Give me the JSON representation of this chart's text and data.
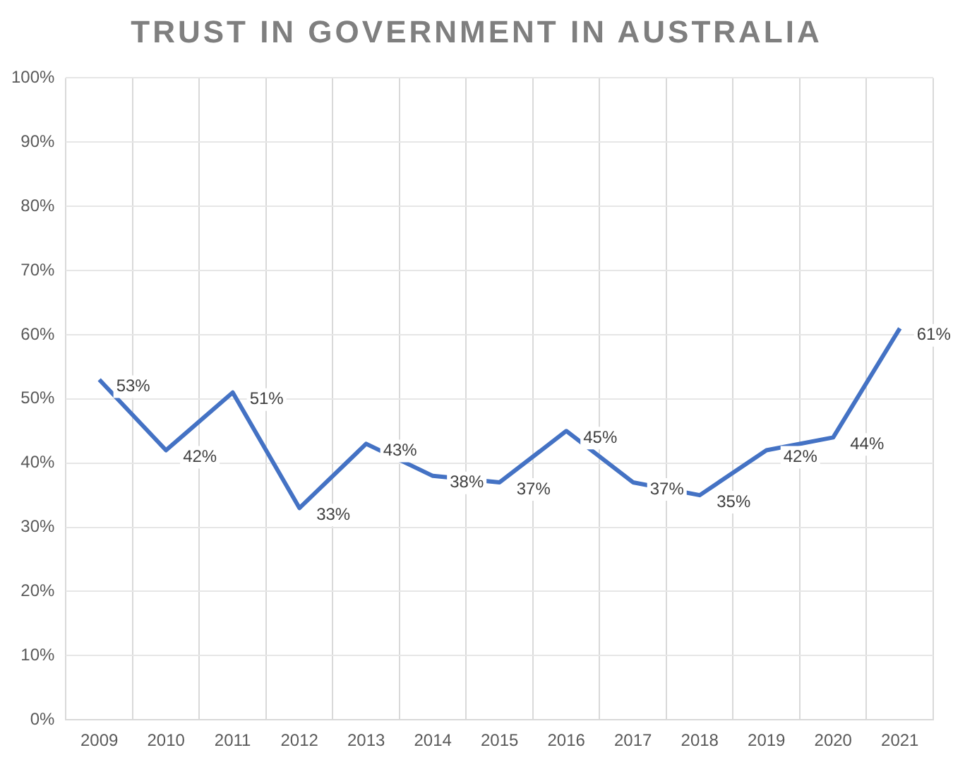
{
  "chart_data": {
    "type": "line",
    "title": "TRUST IN GOVERNMENT IN AUSTRALIA",
    "categories": [
      "2009",
      "2010",
      "2011",
      "2012",
      "2013",
      "2014",
      "2015",
      "2016",
      "2017",
      "2018",
      "2019",
      "2020",
      "2021"
    ],
    "series": [
      {
        "color": "#4472c4",
        "values": [
          53,
          42,
          51,
          33,
          43,
          38,
          37,
          45,
          37,
          35,
          42,
          44,
          61
        ]
      }
    ],
    "ylim": [
      0,
      100
    ],
    "yticks": [
      {
        "value": 0,
        "label": "0%"
      },
      {
        "value": 10,
        "label": "10%"
      },
      {
        "value": 20,
        "label": "20%"
      },
      {
        "value": 30,
        "label": "30%"
      },
      {
        "value": 40,
        "label": "40%"
      },
      {
        "value": 50,
        "label": "50%"
      },
      {
        "value": 60,
        "label": "60%"
      },
      {
        "value": 70,
        "label": "70%"
      },
      {
        "value": 80,
        "label": "80%"
      },
      {
        "value": 90,
        "label": "90%"
      },
      {
        "value": 100,
        "label": "100%"
      }
    ],
    "value_labels": [
      "53%",
      "42%",
      "51%",
      "33%",
      "43%",
      "38%",
      "37%",
      "45%",
      "37%",
      "35%",
      "42%",
      "44%",
      "61%"
    ],
    "grid": true,
    "marker": "none",
    "line_style": "solid",
    "legend": false
  }
}
